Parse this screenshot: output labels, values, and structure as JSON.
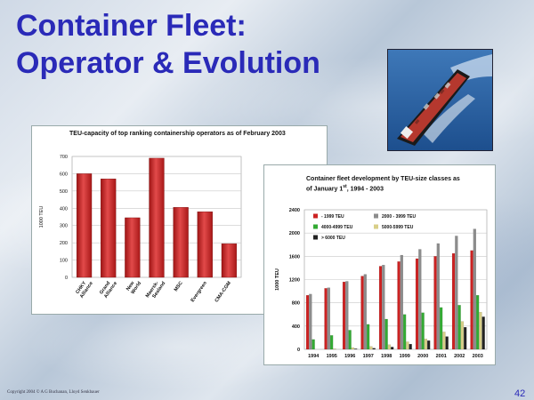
{
  "slide": {
    "title_line1": "Container Fleet:",
    "title_line2": "Operator & Evolution",
    "footer": "Copyright 2004 © A G Buchanan, Lloyd Senkbauer",
    "page_number": "42"
  },
  "colors": {
    "title": "#2a2ab8",
    "bar_red": "#cc2424"
  },
  "chart_data": [
    {
      "type": "bar",
      "title": "TEU-capacity of top ranking containership operators as of February 2003",
      "ylabel": "1000 TEU",
      "xlabel": "",
      "ylim": [
        0,
        700
      ],
      "yticks": [
        0,
        100,
        200,
        300,
        400,
        500,
        600,
        700
      ],
      "categories": [
        [
          "CHKY",
          "Alliance"
        ],
        [
          "Grand",
          "Alliance"
        ],
        [
          "New",
          "World"
        ],
        [
          "Maersk-",
          "Sealand"
        ],
        [
          "MSC"
        ],
        [
          "Evergreen"
        ],
        [
          "CMA-CGM"
        ]
      ],
      "values": [
        600,
        570,
        345,
        690,
        405,
        380,
        195
      ],
      "grid": true
    },
    {
      "type": "bar",
      "title_line1": "Container fleet development by TEU-size classes as",
      "title_line2_pre": "of January 1",
      "title_line2_sup": "st",
      "title_line2_post": ", 1994 - 2003",
      "ylabel": "1000 TEU",
      "ylim": [
        0,
        2400
      ],
      "yticks": [
        0,
        400,
        800,
        1200,
        1600,
        2000,
        2400
      ],
      "categories": [
        "1994",
        "1995",
        "1996",
        "1997",
        "1998",
        "1999",
        "2000",
        "2001",
        "2002",
        "2003"
      ],
      "legend_position": "top-left",
      "series": [
        {
          "name": "- 1999 TEU",
          "color": "#cc2222",
          "values": [
            930,
            1050,
            1160,
            1260,
            1430,
            1510,
            1560,
            1600,
            1650,
            1700
          ]
        },
        {
          "name": "2000 - 3999 TEU",
          "color": "#8c8c8c",
          "values": [
            950,
            1060,
            1170,
            1290,
            1450,
            1620,
            1720,
            1820,
            1950,
            2070
          ]
        },
        {
          "name": "4000-4999 TEU",
          "color": "#33aa33",
          "values": [
            170,
            240,
            330,
            430,
            520,
            600,
            630,
            720,
            760,
            930
          ]
        },
        {
          "name": "5000-5999 TEU",
          "color": "#d8cf88",
          "values": [
            0,
            10,
            30,
            50,
            80,
            130,
            180,
            300,
            480,
            640
          ]
        },
        {
          "name": "> 6000 TEU",
          "color": "#222222",
          "values": [
            0,
            0,
            10,
            20,
            40,
            90,
            150,
            220,
            380,
            560
          ]
        }
      ],
      "grid": true
    }
  ]
}
